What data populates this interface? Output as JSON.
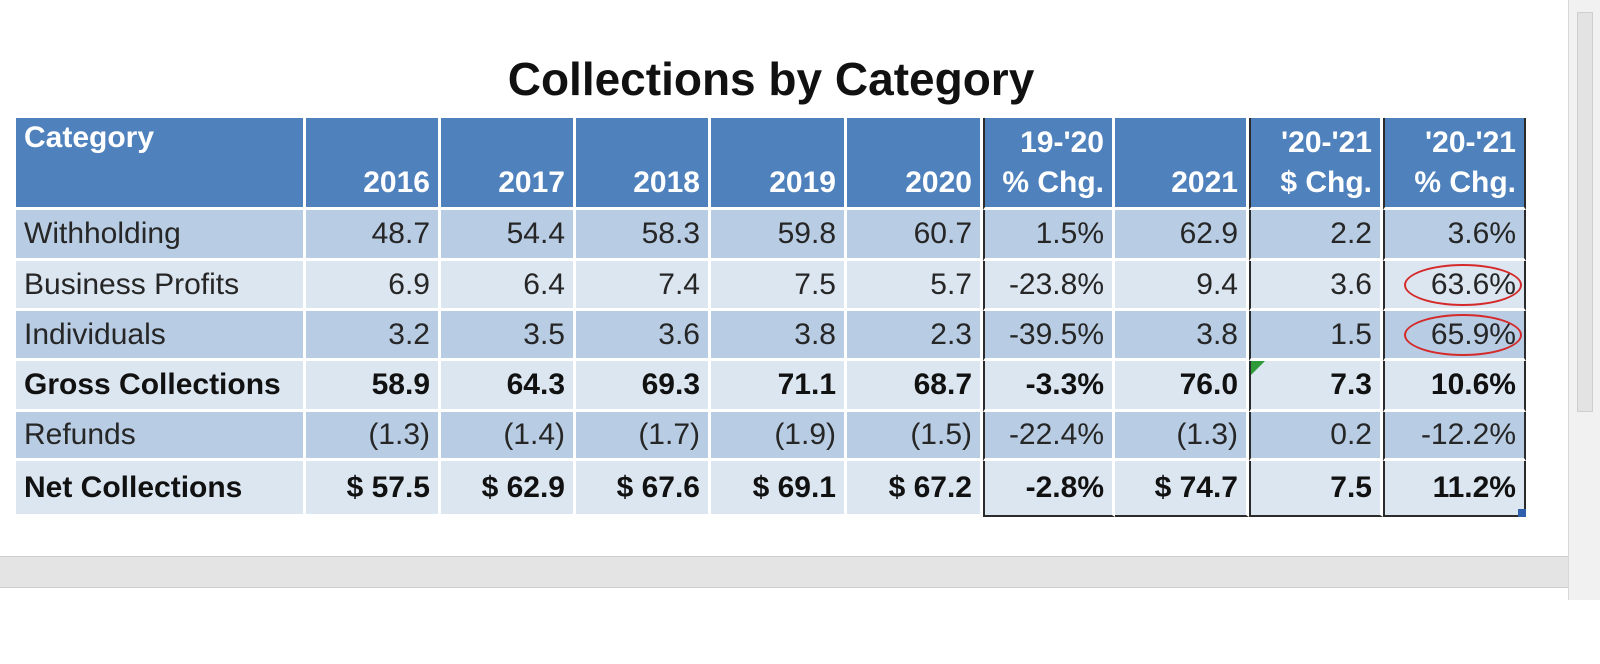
{
  "title": "Collections by Category",
  "headers": [
    {
      "line1": "",
      "line2": "Category"
    },
    {
      "line1": "",
      "line2": "2016"
    },
    {
      "line1": "",
      "line2": "2017"
    },
    {
      "line1": "",
      "line2": "2018"
    },
    {
      "line1": "",
      "line2": "2019"
    },
    {
      "line1": "",
      "line2": "2020"
    },
    {
      "line1": "19-'20",
      "line2": "% Chg."
    },
    {
      "line1": "",
      "line2": "2021"
    },
    {
      "line1": "'20-'21",
      "line2": "$ Chg."
    },
    {
      "line1": "'20-'21",
      "line2": "% Chg."
    }
  ],
  "rows": [
    {
      "label": "Withholding",
      "bold": false,
      "cells": [
        "48.7",
        "54.4",
        "58.3",
        "59.8",
        "60.7",
        "1.5%",
        "62.9",
        "2.2",
        "3.6%"
      ]
    },
    {
      "label": "Business Profits",
      "bold": false,
      "cells": [
        "6.9",
        "6.4",
        "7.4",
        "7.5",
        "5.7",
        "-23.8%",
        "9.4",
        "3.6",
        "63.6%"
      ]
    },
    {
      "label": "Individuals",
      "bold": false,
      "cells": [
        "3.2",
        "3.5",
        "3.6",
        "3.8",
        "2.3",
        "-39.5%",
        "3.8",
        "1.5",
        "65.9%"
      ]
    },
    {
      "label": "Gross Collections",
      "bold": true,
      "cells": [
        "58.9",
        "64.3",
        "69.3",
        "71.1",
        "68.7",
        "-3.3%",
        "76.0",
        "7.3",
        "10.6%"
      ]
    },
    {
      "label": "Refunds",
      "bold": false,
      "cells": [
        "(1.3)",
        "(1.4)",
        "(1.7)",
        "(1.9)",
        "(1.5)",
        "-22.4%",
        "(1.3)",
        "0.2",
        "-12.2%"
      ]
    },
    {
      "label": "Net Collections",
      "bold": true,
      "cells": [
        "$ 57.5",
        "$ 62.9",
        "$ 67.6",
        "$ 69.1",
        "$ 67.2",
        "-2.8%",
        "$ 74.7",
        "7.5",
        "11.2%"
      ]
    }
  ],
  "highlighted_cells": [
    "63.6%",
    "65.9%"
  ],
  "colors": {
    "header_bg": "#4f81bd",
    "band_dark": "#b8cce4",
    "band_light": "#dce6f1",
    "highlight_circle": "#d42a2a",
    "error_indicator": "#2e9a3a"
  }
}
